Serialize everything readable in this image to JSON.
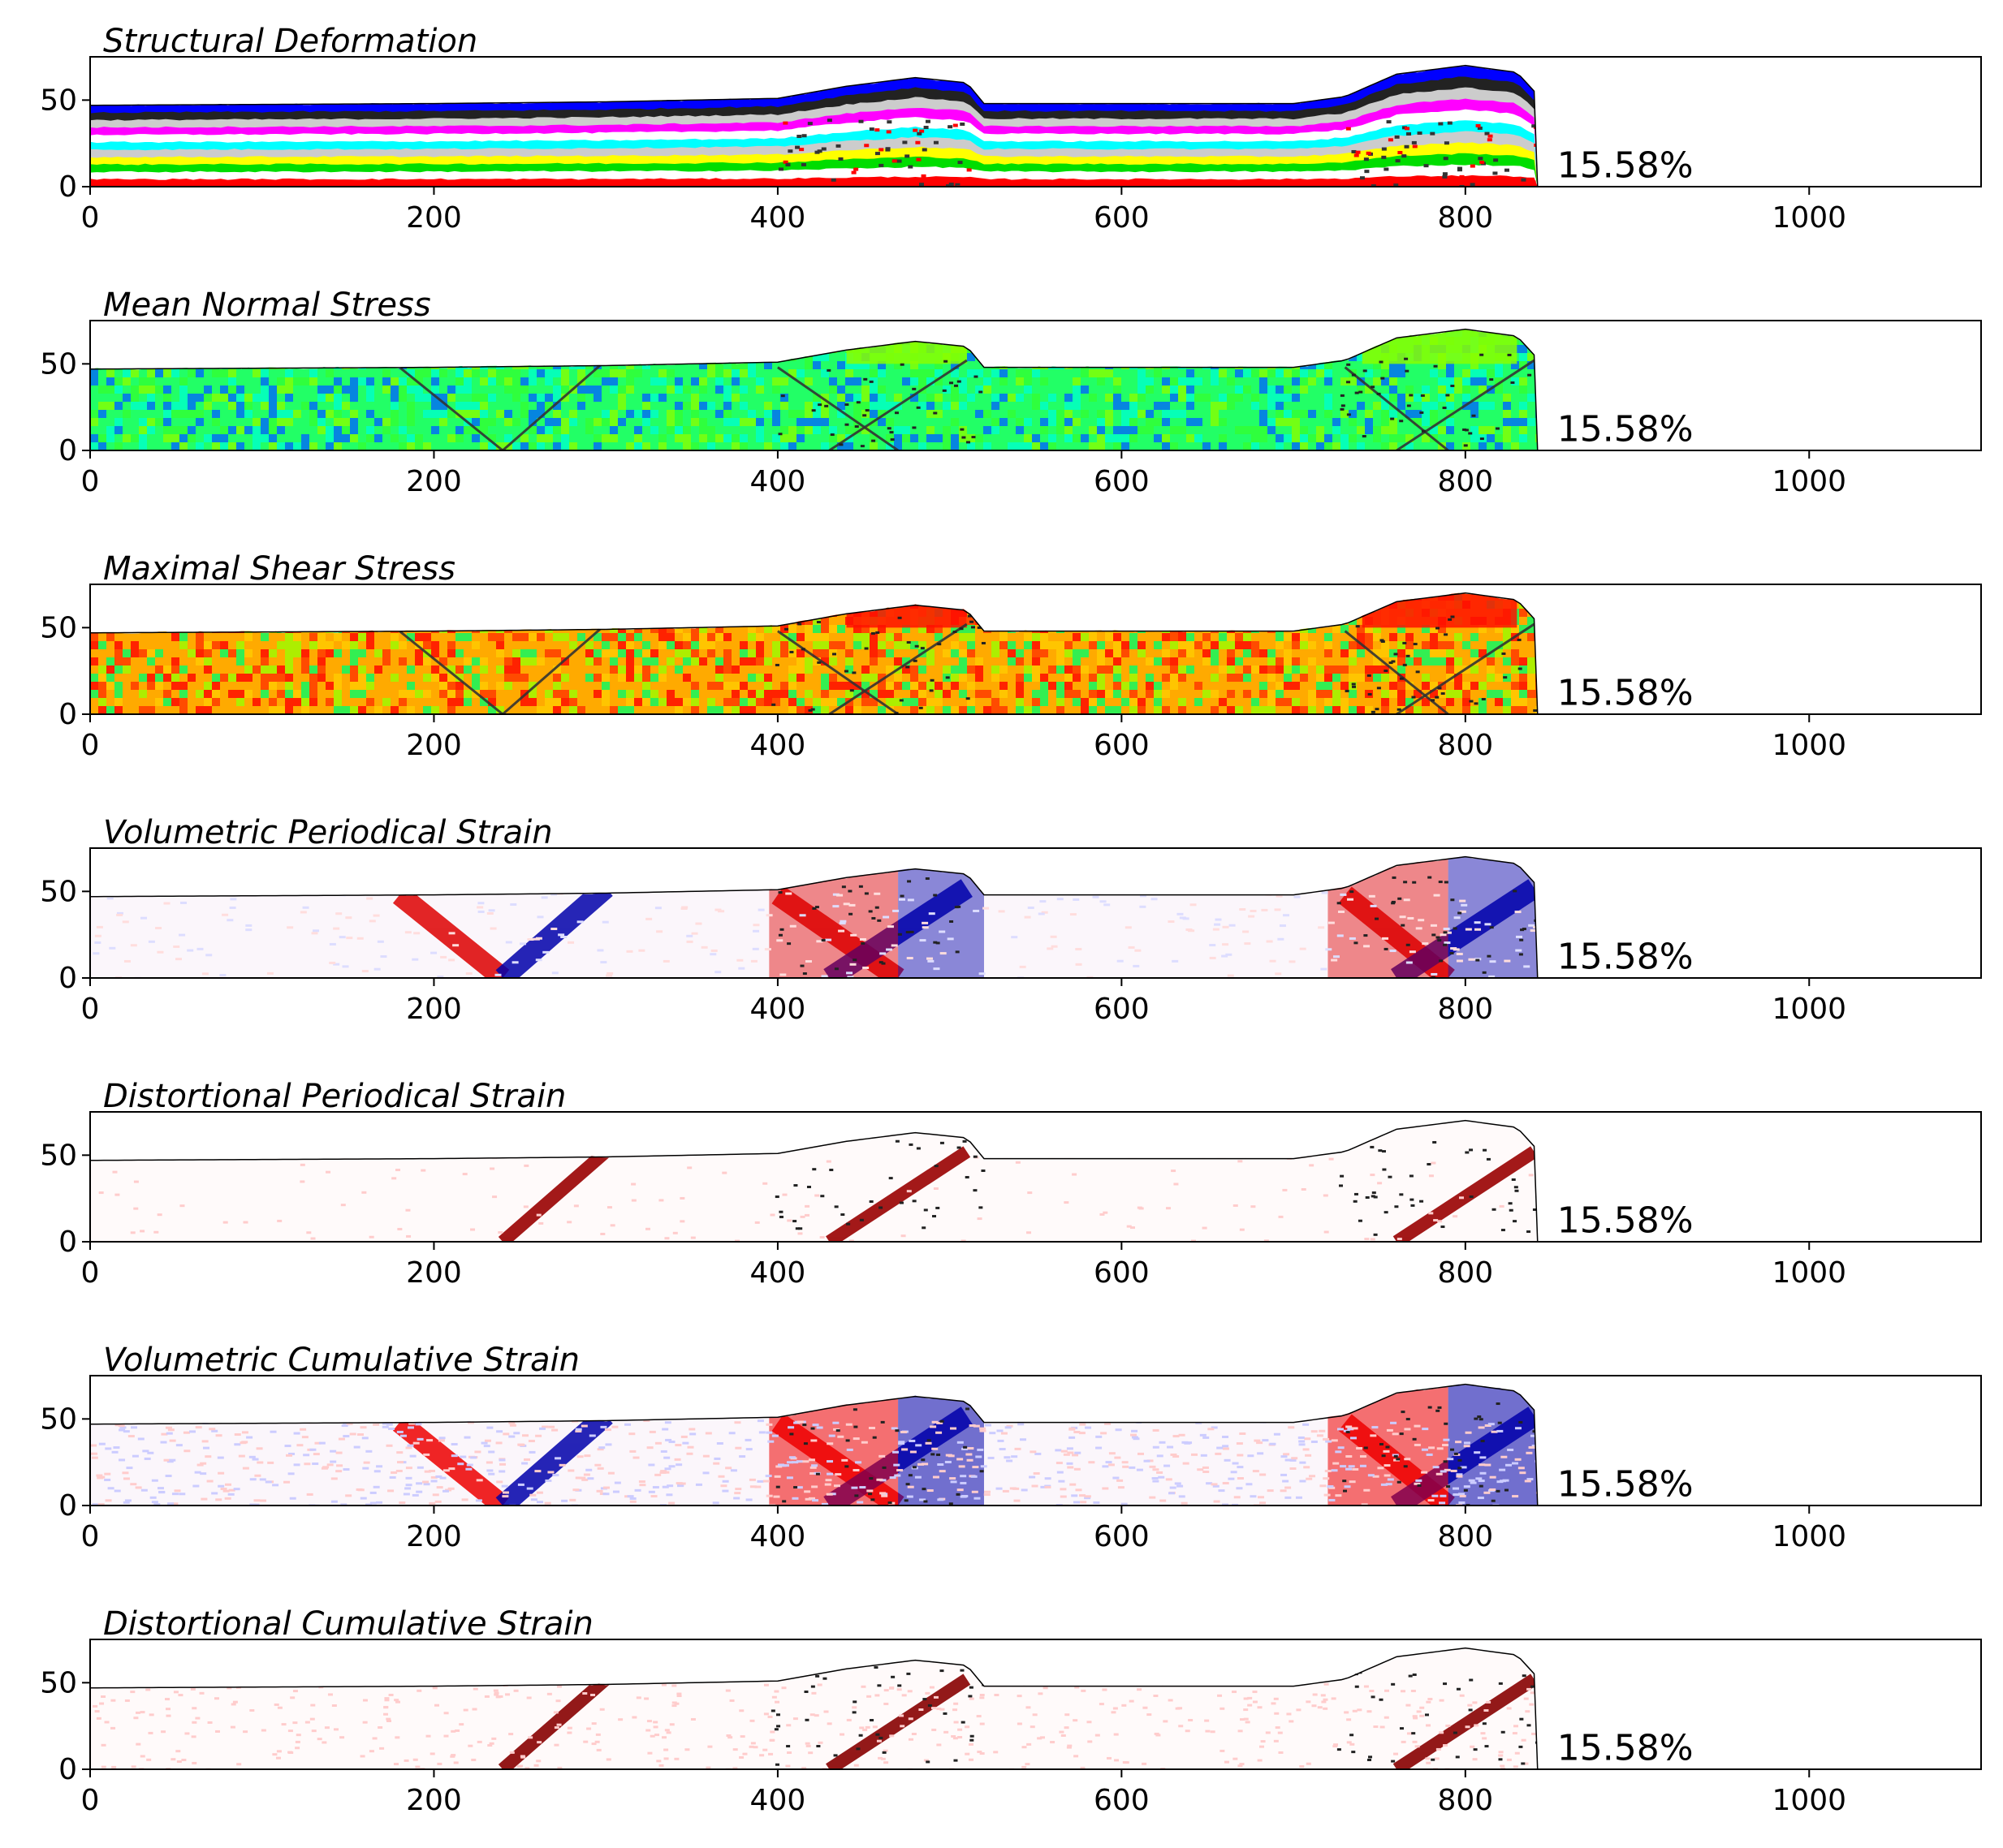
{
  "figure": {
    "annotation": "15.58%"
  },
  "chart_data": [
    {
      "type": "heatmap",
      "title": "Structural Deformation",
      "xlabel": "",
      "ylabel": "",
      "xlim": [
        0,
        1100
      ],
      "ylim": [
        0,
        75
      ],
      "xticks": [
        0,
        200,
        400,
        600,
        800,
        1000
      ],
      "yticks": [
        0,
        50
      ],
      "annotation": "15.58%",
      "render": "layers",
      "layer_colors": [
        "#ff0000",
        "#ffffff",
        "#00dd00",
        "#ffff00",
        "#cccccc",
        "#00ffff",
        "#ffffff",
        "#ff00ff",
        "#cccccc",
        "#222222",
        "#0000ff"
      ],
      "specimen_extent_x": [
        0,
        842
      ],
      "fault_zones_x": [
        [
          400,
          510
        ],
        [
          730,
          840
        ]
      ],
      "surface_profile": [
        [
          0,
          47
        ],
        [
          200,
          48
        ],
        [
          300,
          49
        ],
        [
          400,
          51
        ],
        [
          440,
          58
        ],
        [
          480,
          63
        ],
        [
          510,
          60
        ],
        [
          520,
          48
        ],
        [
          700,
          48
        ],
        [
          730,
          52
        ],
        [
          760,
          65
        ],
        [
          800,
          70
        ],
        [
          830,
          66
        ],
        [
          842,
          53
        ]
      ]
    },
    {
      "type": "heatmap",
      "title": "Mean Normal Stress",
      "xlabel": "",
      "ylabel": "",
      "xlim": [
        0,
        1100
      ],
      "ylim": [
        0,
        75
      ],
      "xticks": [
        0,
        200,
        400,
        600,
        800,
        1000
      ],
      "yticks": [
        0,
        50
      ],
      "annotation": "15.58%",
      "render": "stress_mean",
      "colors": [
        "#00ffcc",
        "#33ff33",
        "#88ff00",
        "#0066ff"
      ]
    },
    {
      "type": "heatmap",
      "title": "Maximal Shear Stress",
      "xlabel": "",
      "ylabel": "",
      "xlim": [
        0,
        1100
      ],
      "ylim": [
        0,
        75
      ],
      "xticks": [
        0,
        200,
        400,
        600,
        800,
        1000
      ],
      "yticks": [
        0,
        50
      ],
      "annotation": "15.58%",
      "render": "stress_shear",
      "colors": [
        "#ff3300",
        "#ffcc00",
        "#99ff00",
        "#00ff66",
        "#ff0000"
      ]
    },
    {
      "type": "heatmap",
      "title": "Volumetric Periodical Strain",
      "xlabel": "",
      "ylabel": "",
      "xlim": [
        0,
        1100
      ],
      "ylim": [
        0,
        75
      ],
      "xticks": [
        0,
        200,
        400,
        600,
        800,
        1000
      ],
      "yticks": [
        0,
        50
      ],
      "annotation": "15.58%",
      "render": "vol_periodic",
      "colors": [
        "#dd0000",
        "#0000aa",
        "#ffdddd",
        "#ddddff"
      ]
    },
    {
      "type": "heatmap",
      "title": "Distortional Periodical Strain",
      "xlabel": "",
      "ylabel": "",
      "xlim": [
        0,
        1100
      ],
      "ylim": [
        0,
        75
      ],
      "xticks": [
        0,
        200,
        400,
        600,
        800,
        1000
      ],
      "yticks": [
        0,
        50
      ],
      "annotation": "15.58%",
      "render": "dist_periodic",
      "colors": [
        "#990000",
        "#fff5f5"
      ]
    },
    {
      "type": "heatmap",
      "title": "Volumetric Cumulative Strain",
      "xlabel": "",
      "ylabel": "",
      "xlim": [
        0,
        1100
      ],
      "ylim": [
        0,
        75
      ],
      "xticks": [
        0,
        200,
        400,
        600,
        800,
        1000
      ],
      "yticks": [
        0,
        50
      ],
      "annotation": "15.58%",
      "render": "vol_cumulative",
      "colors": [
        "#ee0000",
        "#0000aa",
        "#ffcccc",
        "#ccccff"
      ]
    },
    {
      "type": "heatmap",
      "title": "Distortional Cumulative Strain",
      "xlabel": "",
      "ylabel": "",
      "xlim": [
        0,
        1100
      ],
      "ylim": [
        0,
        75
      ],
      "xticks": [
        0,
        200,
        400,
        600,
        800,
        1000
      ],
      "yticks": [
        0,
        50
      ],
      "annotation": "15.58%",
      "render": "dist_cumulative",
      "colors": [
        "#880000",
        "#ffeeee"
      ]
    }
  ]
}
